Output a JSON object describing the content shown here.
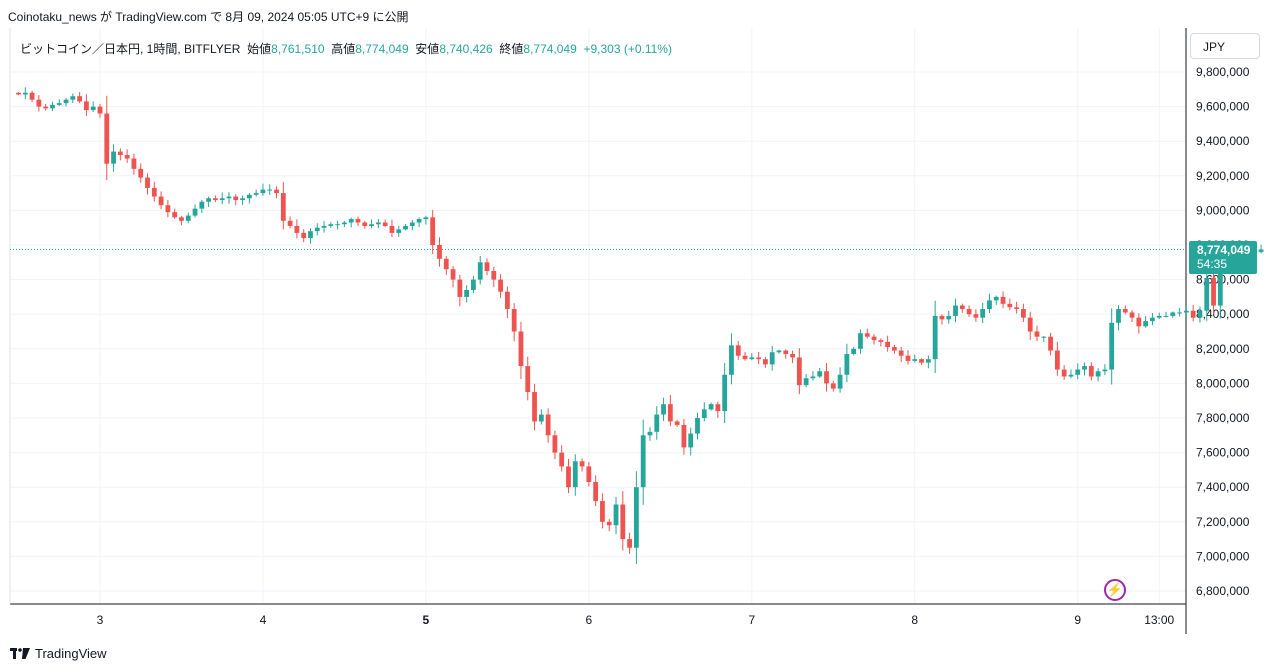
{
  "header": {
    "publish_line": "Coinotaku_news が TradingView.com で 8月 09, 2024 05:05 UTC+9 に公開"
  },
  "legend": {
    "symbol": "ビットコイン／日本円, 1時間, BITFLYER",
    "open_label": "始値",
    "open_value": "8,761,510",
    "high_label": "高値",
    "high_value": "8,774,049",
    "low_label": "安値",
    "low_value": "8,740,426",
    "close_label": "終値",
    "close_value": "8,774,049",
    "change": "+9,303 (+0.11%)"
  },
  "currency_button": {
    "label": "JPY"
  },
  "price_tag": {
    "price": "8,774,049",
    "countdown": "54:35"
  },
  "footer": {
    "brand": "TradingView"
  },
  "colors": {
    "up": "#26a69a",
    "down": "#ef5350",
    "grid": "#f0f3fa",
    "text": "#131722",
    "accent_purple": "#9c27b0"
  },
  "icons": {
    "flash": "lightning-icon",
    "logo": "tradingview-logo-icon"
  },
  "chart_data": {
    "type": "candlestick",
    "title": "",
    "xlabel": "",
    "ylabel": "",
    "ylim": [
      6750000,
      9900000
    ],
    "y_ticks": [
      "9,800,000",
      "9,600,000",
      "9,400,000",
      "9,200,000",
      "9,000,000",
      "8,800,000",
      "8,600,000",
      "8,400,000",
      "8,200,000",
      "8,000,000",
      "7,800,000",
      "7,600,000",
      "7,400,000",
      "7,200,000",
      "7,000,000",
      "6,800,000"
    ],
    "y_tick_values": [
      9800000,
      9600000,
      9400000,
      9200000,
      9000000,
      8800000,
      8600000,
      8400000,
      8200000,
      8000000,
      7800000,
      7600000,
      7400000,
      7200000,
      7000000,
      6800000
    ],
    "x_ticks": [
      {
        "label": "3",
        "hours": 12,
        "bold": false
      },
      {
        "label": "4",
        "hours": 36,
        "bold": false
      },
      {
        "label": "5",
        "hours": 60,
        "bold": true
      },
      {
        "label": "6",
        "hours": 84,
        "bold": false
      },
      {
        "label": "7",
        "hours": 108,
        "bold": false
      },
      {
        "label": "8",
        "hours": 132,
        "bold": false
      },
      {
        "label": "9",
        "hours": 156,
        "bold": false
      },
      {
        "label": "13:00",
        "hours": 168,
        "bold": false
      }
    ],
    "grid": true,
    "last_price": 8774049,
    "closes": [
      9670000,
      9680000,
      9640000,
      9600000,
      9590000,
      9610000,
      9620000,
      9640000,
      9660000,
      9630000,
      9580000,
      9600000,
      9560000,
      9270000,
      9340000,
      9320000,
      9300000,
      9240000,
      9190000,
      9130000,
      9080000,
      9030000,
      8990000,
      8960000,
      8940000,
      8970000,
      9010000,
      9050000,
      9070000,
      9060000,
      9070000,
      9080000,
      9060000,
      9070000,
      9090000,
      9100000,
      9120000,
      9120000,
      9100000,
      8940000,
      8910000,
      8870000,
      8840000,
      8880000,
      8900000,
      8910000,
      8920000,
      8920000,
      8930000,
      8950000,
      8930000,
      8910000,
      8920000,
      8930000,
      8910000,
      8870000,
      8890000,
      8910000,
      8930000,
      8950000,
      8960000,
      8800000,
      8720000,
      8660000,
      8600000,
      8500000,
      8540000,
      8600000,
      8700000,
      8650000,
      8600000,
      8530000,
      8430000,
      8300000,
      8100000,
      7950000,
      7780000,
      7820000,
      7700000,
      7600000,
      7520000,
      7400000,
      7550000,
      7520000,
      7430000,
      7320000,
      7200000,
      7180000,
      7300000,
      7100000,
      7050000,
      7400000,
      7700000,
      7720000,
      7820000,
      7880000,
      7780000,
      7760000,
      7630000,
      7710000,
      7800000,
      7850000,
      7880000,
      7840000,
      8050000,
      8220000,
      8160000,
      8140000,
      8150000,
      8140000,
      8110000,
      8180000,
      8190000,
      8170000,
      8150000,
      7990000,
      8030000,
      8040000,
      8070000,
      8000000,
      7970000,
      8050000,
      8170000,
      8200000,
      8290000,
      8270000,
      8250000,
      8240000,
      8210000,
      8190000,
      8160000,
      8130000,
      8140000,
      8120000,
      8140000,
      8390000,
      8370000,
      8390000,
      8450000,
      8430000,
      8400000,
      8380000,
      8430000,
      8480000,
      8500000,
      8460000,
      8440000,
      8430000,
      8380000,
      8300000,
      8270000,
      8270000,
      8190000,
      8080000,
      8040000,
      8050000,
      8080000,
      8100000,
      8040000,
      8070000,
      8080000,
      8350000,
      8430000,
      8410000,
      8380000,
      8330000,
      8360000,
      8380000,
      8390000,
      8390000,
      8410000,
      8410000,
      8420000,
      8380000,
      8420000,
      8610000,
      8450000,
      8720000,
      8780000,
      8780000,
      8770000,
      8765000,
      8760000,
      8774049
    ],
    "first_open": 9680000
  }
}
